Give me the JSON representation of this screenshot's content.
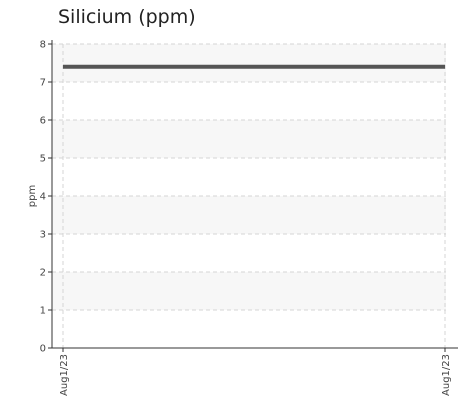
{
  "chart_data": {
    "type": "line",
    "title": "Silicium (ppm)",
    "xlabel": "",
    "ylabel": "ppm",
    "x_ticks": [
      "Aug1/23",
      "Aug1/23"
    ],
    "y_ticks": [
      "0",
      "1",
      "2",
      "3",
      "4",
      "5",
      "6",
      "7",
      "8"
    ],
    "ylim": [
      0,
      8
    ],
    "grid": true,
    "series": [
      {
        "values": [
          7.4,
          7.4
        ],
        "color": "#555555"
      }
    ]
  }
}
